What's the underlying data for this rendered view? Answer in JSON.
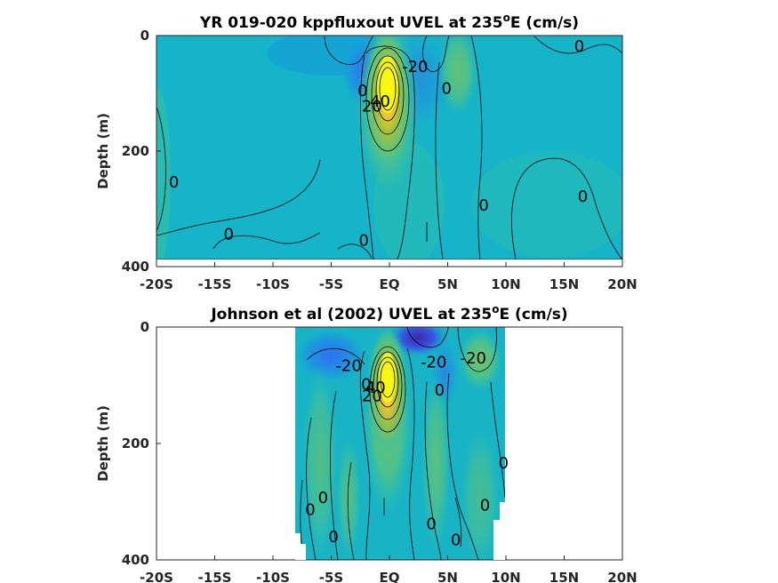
{
  "chart_data": [
    {
      "type": "heatmap",
      "title_main": "YR 019-020 kppfluxout UVEL at 235",
      "title_sup": "o",
      "title_tail": "E (cm/s)",
      "ylabel": "Depth (m)",
      "xlabel": "",
      "xticks": [
        "-20S",
        "-15S",
        "-10S",
        "-5S",
        "EQ",
        "5N",
        "10N",
        "15N",
        "20N"
      ],
      "yticks": [
        "0",
        "200",
        "400"
      ],
      "xlim": [
        -20,
        20
      ],
      "ylim": [
        0,
        400
      ],
      "colormap": [
        "#3e26a8",
        "#2f6ff0",
        "#17a1d8",
        "#15b7c4",
        "#3fc19a",
        "#a6c23a",
        "#e6c12e",
        "#fbdc27",
        "#f9fb0e"
      ],
      "contour_labels": [
        {
          "text": "-20",
          "x": 2.2,
          "y": 55
        },
        {
          "text": "0",
          "x": -2.3,
          "y": 97
        },
        {
          "text": "0",
          "x": 4.9,
          "y": 93
        },
        {
          "text": "0",
          "x": 16.3,
          "y": 20
        },
        {
          "text": "40",
          "x": -0.8,
          "y": 115
        },
        {
          "text": "20",
          "x": -1.5,
          "y": 124
        },
        {
          "text": "0",
          "x": -18.5,
          "y": 255
        },
        {
          "text": "0",
          "x": 16.6,
          "y": 280
        },
        {
          "text": "0",
          "x": 8.1,
          "y": 295
        },
        {
          "text": "0",
          "x": -13.8,
          "y": 345
        },
        {
          "text": "0",
          "x": -2.2,
          "y": 356
        }
      ]
    },
    {
      "type": "heatmap",
      "title_main": "Johnson et al (2002) UVEL at 235",
      "title_sup": "o",
      "title_tail": "E (cm/s)",
      "ylabel": "Depth (m)",
      "xlabel": "",
      "xticks": [
        "-20S",
        "-15S",
        "-10S",
        "-5S",
        "EQ",
        "5N",
        "10N",
        "15N",
        "20N"
      ],
      "yticks": [
        "0",
        "200",
        "400"
      ],
      "xlim": [
        -20,
        20
      ],
      "ylim": [
        0,
        400
      ],
      "data_extent_x": [
        -8,
        10
      ],
      "contour_labels": [
        {
          "text": "-20",
          "x": -3.5,
          "y": 68
        },
        {
          "text": "-20",
          "x": 3.8,
          "y": 62
        },
        {
          "text": "-20",
          "x": 7.2,
          "y": 55
        },
        {
          "text": "0",
          "x": 4.3,
          "y": 110
        },
        {
          "text": "40",
          "x": -1.2,
          "y": 105
        },
        {
          "text": "20",
          "x": -1.5,
          "y": 120
        },
        {
          "text": "0",
          "x": -2.0,
          "y": 100
        },
        {
          "text": "0",
          "x": 9.8,
          "y": 235
        },
        {
          "text": "0",
          "x": -5.7,
          "y": 295
        },
        {
          "text": "0",
          "x": -6.8,
          "y": 315
        },
        {
          "text": "0",
          "x": 8.2,
          "y": 308
        },
        {
          "text": "0",
          "x": 3.6,
          "y": 340
        },
        {
          "text": "0",
          "x": -4.8,
          "y": 362
        },
        {
          "text": "0",
          "x": 5.7,
          "y": 367
        }
      ]
    }
  ]
}
